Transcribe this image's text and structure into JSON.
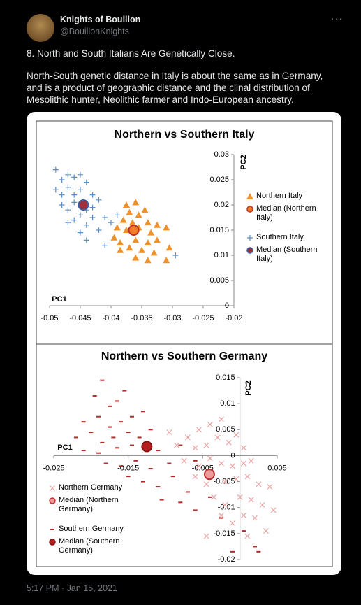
{
  "tweet": {
    "name": "Knights of Bouillon",
    "handle": "@BouillonKnights",
    "headline": "8. North and South Italians Are Genetically Close.",
    "text": "North-South genetic distance in Italy is about the same as in Germany, and is a product of geographic distance and the clinal distribution of Mesolithic hunter, Neolithic farmer and Indo-European ancestry.",
    "timestamp": "5:17 PM · Jan 15, 2021"
  },
  "chart_data": [
    {
      "type": "scatter",
      "title": "Northern vs Southern Italy",
      "x_label": "PC1",
      "y_label": "PC2",
      "xlim": [
        -0.05,
        -0.02
      ],
      "xticks": [
        -0.05,
        -0.045,
        -0.04,
        -0.035,
        -0.03,
        -0.025,
        -0.02
      ],
      "ylim": [
        0,
        0.03
      ],
      "yticks": [
        0,
        0.005,
        0.01,
        0.015,
        0.02,
        0.025,
        0.03
      ],
      "series": [
        {
          "name": "Northern Italy",
          "marker": "triangle",
          "color": "#f0922b",
          "x": [
            -0.0375,
            -0.036,
            -0.0345,
            -0.037,
            -0.0355,
            -0.038,
            -0.0365,
            -0.034,
            -0.0325,
            -0.039,
            -0.0375,
            -0.0355,
            -0.0335,
            -0.031,
            -0.0395,
            -0.0385,
            -0.036,
            -0.034,
            -0.0325,
            -0.037,
            -0.035,
            -0.033,
            -0.0385,
            -0.036,
            -0.034,
            -0.031,
            -0.0305
          ],
          "values": [
            0.02,
            0.0205,
            0.019,
            0.0185,
            0.018,
            0.017,
            0.0165,
            0.0165,
            0.016,
            0.0155,
            0.015,
            0.0155,
            0.0145,
            0.0155,
            0.0135,
            0.0125,
            0.013,
            0.0125,
            0.013,
            0.0115,
            0.011,
            0.0105,
            0.011,
            0.0095,
            0.009,
            0.009,
            0.0115
          ]
        },
        {
          "name": "Median (Northern Italy)",
          "marker": "circle",
          "color": "#f07a2a",
          "edge": "#c0301e",
          "x": [
            -0.0363
          ],
          "values": [
            0.015
          ]
        },
        {
          "name": "Southern Italy",
          "marker": "plus",
          "color": "#5b8fc9",
          "x": [
            -0.049,
            -0.048,
            -0.047,
            -0.046,
            -0.045,
            -0.044,
            -0.049,
            -0.048,
            -0.047,
            -0.046,
            -0.045,
            -0.043,
            -0.048,
            -0.047,
            -0.046,
            -0.044,
            -0.043,
            -0.042,
            -0.046,
            -0.045,
            -0.043,
            -0.041,
            -0.04,
            -0.044,
            -0.042,
            -0.045,
            -0.044,
            -0.041,
            -0.047,
            -0.039,
            -0.0295
          ],
          "values": [
            0.027,
            0.025,
            0.026,
            0.0255,
            0.026,
            0.0245,
            0.023,
            0.022,
            0.0235,
            0.022,
            0.023,
            0.022,
            0.02,
            0.019,
            0.0205,
            0.019,
            0.0195,
            0.021,
            0.017,
            0.018,
            0.0175,
            0.0175,
            0.0165,
            0.016,
            0.015,
            0.0145,
            0.013,
            0.012,
            0.0165,
            0.018,
            0.01
          ]
        },
        {
          "name": "Median (Southern Italy)",
          "marker": "circle",
          "color": "#a0303a",
          "edge": "#3a5fa8",
          "x": [
            -0.0445
          ],
          "values": [
            0.02
          ]
        }
      ]
    },
    {
      "type": "scatter",
      "title": "Northern vs Southern Germany",
      "x_label": "PC1",
      "y_label": "PC2",
      "xlim": [
        -0.025,
        0.005
      ],
      "xticks": [
        -0.025,
        -0.015,
        -0.005,
        0.005
      ],
      "ylim": [
        -0.02,
        0.015
      ],
      "yticks": [
        -0.02,
        -0.015,
        -0.01,
        -0.005,
        0,
        0.005,
        0.01,
        0.015
      ],
      "series": [
        {
          "name": "Northern Germany",
          "marker": "cross",
          "color": "#e8a3a3",
          "x": [
            -0.0095,
            -0.0085,
            -0.007,
            -0.0055,
            -0.004,
            -0.0025,
            -0.006,
            -0.0045,
            -0.003,
            -0.0015,
            -0.0005,
            0.0005,
            -0.0075,
            -0.0055,
            -0.004,
            -0.0025,
            -0.001,
            0.0005,
            0.0015,
            -0.006,
            -0.0045,
            -0.002,
            -0.0005,
            0.001,
            0.0025,
            0.004,
            -0.0035,
            -0.002,
            0.0,
            0.0015,
            0.003,
            0.0045,
            -0.0025,
            -0.001,
            0.0005,
            0.002,
            -0.0045,
            0.001,
            0.0035
          ],
          "values": [
            0.0045,
            0.002,
            0.0035,
            0.005,
            0.006,
            0.007,
            0.0015,
            0.002,
            0.0035,
            0.0025,
            0.004,
            0.0015,
            -0.001,
            -0.002,
            -0.0005,
            -0.0015,
            -0.002,
            -0.0015,
            -0.001,
            -0.004,
            -0.0055,
            -0.005,
            -0.0045,
            -0.004,
            -0.0055,
            -0.006,
            -0.008,
            -0.0095,
            -0.008,
            -0.0085,
            -0.0095,
            -0.0105,
            -0.0115,
            -0.013,
            -0.0115,
            -0.012,
            -0.0155,
            -0.0155,
            -0.0145
          ]
        },
        {
          "name": "Median (Northern Germany)",
          "marker": "circle",
          "color": "#ec9a9a",
          "edge": "#c03030",
          "x": [
            -0.0041
          ],
          "values": [
            -0.0036
          ]
        },
        {
          "name": "Southern Germany",
          "marker": "dash",
          "color": "#b52a2a",
          "x": [
            -0.0195,
            -0.0185,
            -0.0175,
            -0.0165,
            -0.0155,
            -0.021,
            -0.019,
            -0.0175,
            -0.016,
            -0.0145,
            -0.013,
            -0.022,
            -0.02,
            -0.0185,
            -0.017,
            -0.015,
            -0.0135,
            -0.012,
            -0.021,
            -0.019,
            -0.0165,
            -0.0145,
            -0.0125,
            -0.011,
            -0.018,
            -0.016,
            -0.014,
            -0.012,
            -0.0095,
            -0.015,
            -0.013,
            -0.011,
            -0.009,
            -0.007,
            -0.0105,
            -0.008,
            -0.006,
            -0.004,
            -0.0025,
            0.0005,
            0.002,
            0.0025,
            -0.006,
            -0.008,
            -0.001
          ],
          "values": [
            0.0115,
            0.0145,
            0.0095,
            0.0105,
            0.0125,
            0.0065,
            0.0075,
            0.0055,
            0.0065,
            0.0075,
            0.0085,
            0.0035,
            0.0045,
            0.0025,
            0.0035,
            0.0045,
            0.0035,
            0.005,
            0.001,
            0.0005,
            0.0015,
            0.002,
            0.0025,
            0.001,
            -0.0015,
            -0.002,
            -0.001,
            -0.0025,
            -0.0015,
            -0.004,
            -0.005,
            -0.006,
            -0.004,
            -0.007,
            -0.0085,
            -0.009,
            -0.0105,
            -0.008,
            -0.012,
            -0.0145,
            -0.0175,
            -0.0185,
            -0.001,
            0.002,
            -0.0185
          ]
        },
        {
          "name": "Median (Southern Germany)",
          "marker": "circle",
          "color": "#b52020",
          "edge": "#8a1515",
          "x": [
            -0.0125
          ],
          "values": [
            0.00175
          ]
        }
      ]
    }
  ]
}
